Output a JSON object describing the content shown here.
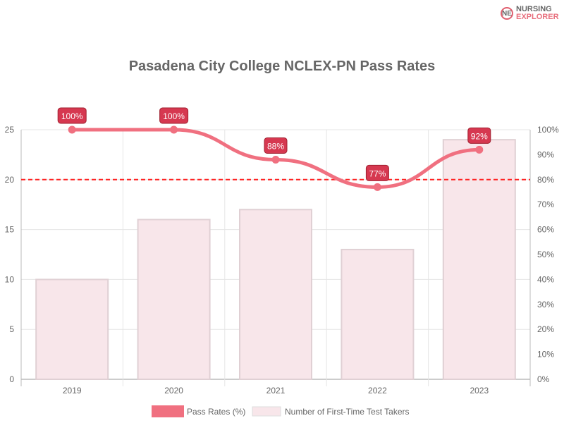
{
  "logo": {
    "line1": "NURSING",
    "line2": "EXPLORER",
    "mark": "NE"
  },
  "chart_data": {
    "type": "bar+line",
    "title": "Pasadena City College NCLEX-PN Pass Rates",
    "categories": [
      "2019",
      "2020",
      "2021",
      "2022",
      "2023"
    ],
    "series": [
      {
        "name": "Pass Rates (%)",
        "type": "line",
        "axis": "right",
        "values": [
          100,
          100,
          88,
          77,
          92
        ],
        "labels": [
          "100%",
          "100%",
          "88%",
          "77%",
          "92%"
        ],
        "color": "#f07080"
      },
      {
        "name": "Number of First-Time Test Takers",
        "type": "bar",
        "axis": "left",
        "values": [
          10,
          16,
          17,
          13,
          24
        ],
        "color": "#f8e6ea"
      }
    ],
    "left_axis": {
      "range": [
        0,
        25
      ],
      "ticks": [
        "0",
        "5",
        "10",
        "15",
        "20",
        "25"
      ]
    },
    "right_axis": {
      "range": [
        0,
        100
      ],
      "ticks": [
        "0%",
        "10%",
        "20%",
        "30%",
        "40%",
        "50%",
        "60%",
        "70%",
        "80%",
        "90%",
        "100%"
      ]
    },
    "reference_line": {
      "value": 80,
      "axis": "right",
      "color": "#ff2020",
      "style": "dashed"
    },
    "grid": true,
    "legend": "bottom",
    "label_color": "#d63850"
  }
}
